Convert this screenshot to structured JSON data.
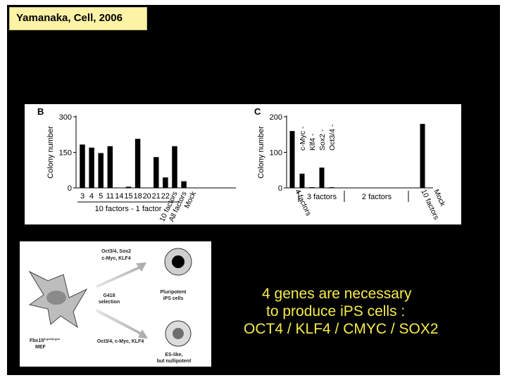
{
  "citation": "Yamanaka, Cell, 2006",
  "chart_data": [
    {
      "panel_label": "B",
      "type": "bar",
      "ylabel": "Colony number",
      "ylim": [
        0,
        300
      ],
      "yticks": [
        "300",
        "150",
        "0"
      ],
      "categories": [
        "3",
        "4",
        "5",
        "11",
        "14",
        "15",
        "18",
        "20",
        "21",
        "22",
        "10 factors",
        "All factors",
        "Mock"
      ],
      "values": [
        183,
        170,
        147,
        176,
        0,
        5,
        207,
        0,
        130,
        44,
        176,
        28,
        0
      ],
      "group_label": "10 factors - 1 factor"
    },
    {
      "panel_label": "C",
      "type": "bar",
      "ylabel": "Colony number",
      "ylim": [
        0,
        200
      ],
      "yticks": [
        "200",
        "100",
        "0"
      ],
      "categories": [
        "4 factors",
        "c-Myc -",
        "Klf4 -",
        "Sox2 -",
        "Oct3/4 -",
        "2 factors",
        "10 factors",
        "Mock"
      ],
      "values": [
        160,
        40,
        2,
        57,
        2,
        0,
        180,
        0
      ],
      "group_labels": [
        "3 factors",
        "2 factors"
      ]
    }
  ],
  "schematic": {
    "top_factors": [
      "Oct3/4, Sox2",
      "c-Myc, KLF4"
    ],
    "selection": [
      "G418",
      "selection"
    ],
    "cell_label": "Fbx15",
    "cell_superscript": "β-geo/β-geo",
    "cell_type": "MEF",
    "top_result": [
      "Pluripotent",
      "iPS cells"
    ],
    "bottom_factors": "Oct3/4, c-Myc, KLF4",
    "bottom_result": [
      "ES-like,",
      "but nullipotent"
    ]
  },
  "conclusion": {
    "lines": [
      "4 genes are necessary",
      "to produce iPS cells :",
      "OCT4 / KLF4 / CMYC / SOX2"
    ]
  },
  "colors": {
    "slide_bg": "#000000",
    "citation_bg": "#fdf3a7",
    "conclusion_text": "#f6ec4a",
    "bar": "#000000"
  }
}
